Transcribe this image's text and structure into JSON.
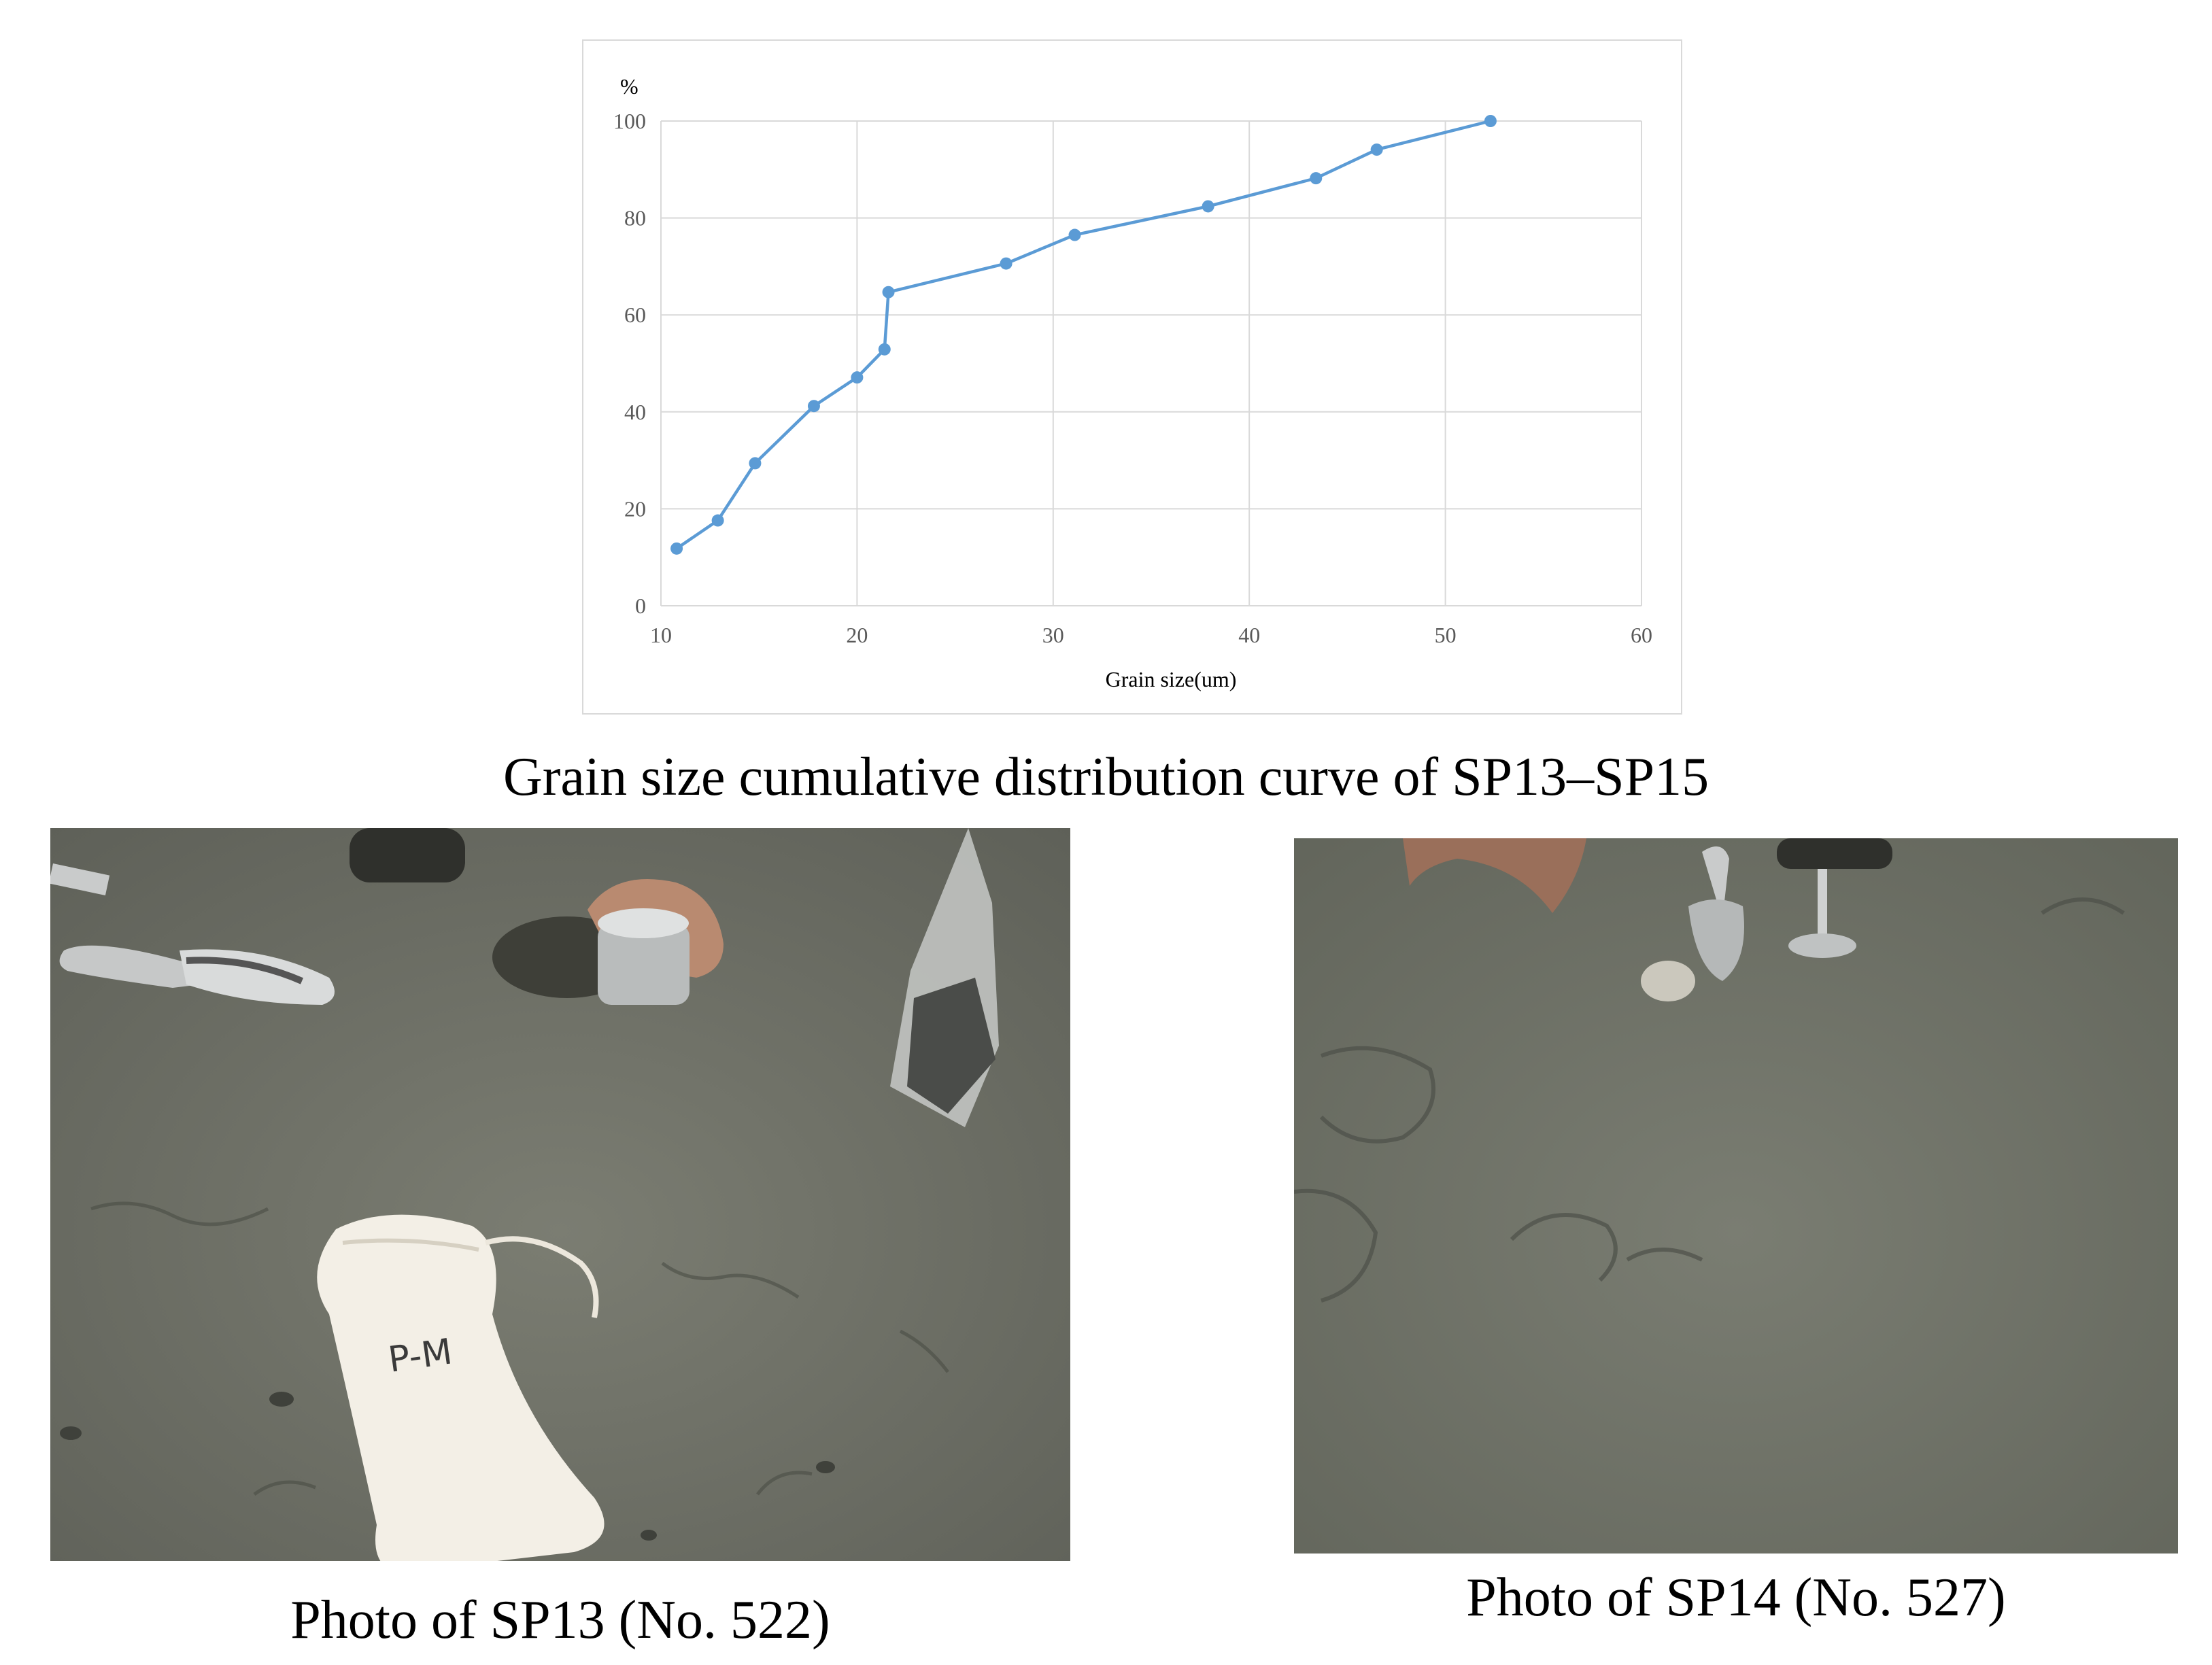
{
  "chart_data": {
    "type": "line",
    "title": "",
    "xlabel": "Grain size(um)",
    "ylabel": "%",
    "xlim": [
      10,
      60
    ],
    "ylim": [
      0,
      100
    ],
    "xticks": [
      10,
      20,
      30,
      40,
      50,
      60
    ],
    "yticks": [
      0,
      20,
      40,
      60,
      80,
      100
    ],
    "grid": true,
    "legend": "none",
    "series": [
      {
        "color": "#5b9bd5",
        "x": [
          10.8,
          12.9,
          14.8,
          17.8,
          20.0,
          21.4,
          21.6,
          27.6,
          31.1,
          37.9,
          43.4,
          46.5,
          52.3
        ],
        "y": [
          11.8,
          17.6,
          29.4,
          41.2,
          47.1,
          52.9,
          64.7,
          70.6,
          76.5,
          82.4,
          88.2,
          94.1,
          100
        ]
      }
    ]
  },
  "captions": {
    "main": "Grain size cumulative distribution curve of SP13–SP15",
    "photo_1": "Photo of SP13 (No. 522)",
    "photo_2": "Photo of SP14 (No. 527)"
  },
  "photo_1": {
    "bag_marking": "P-M"
  }
}
